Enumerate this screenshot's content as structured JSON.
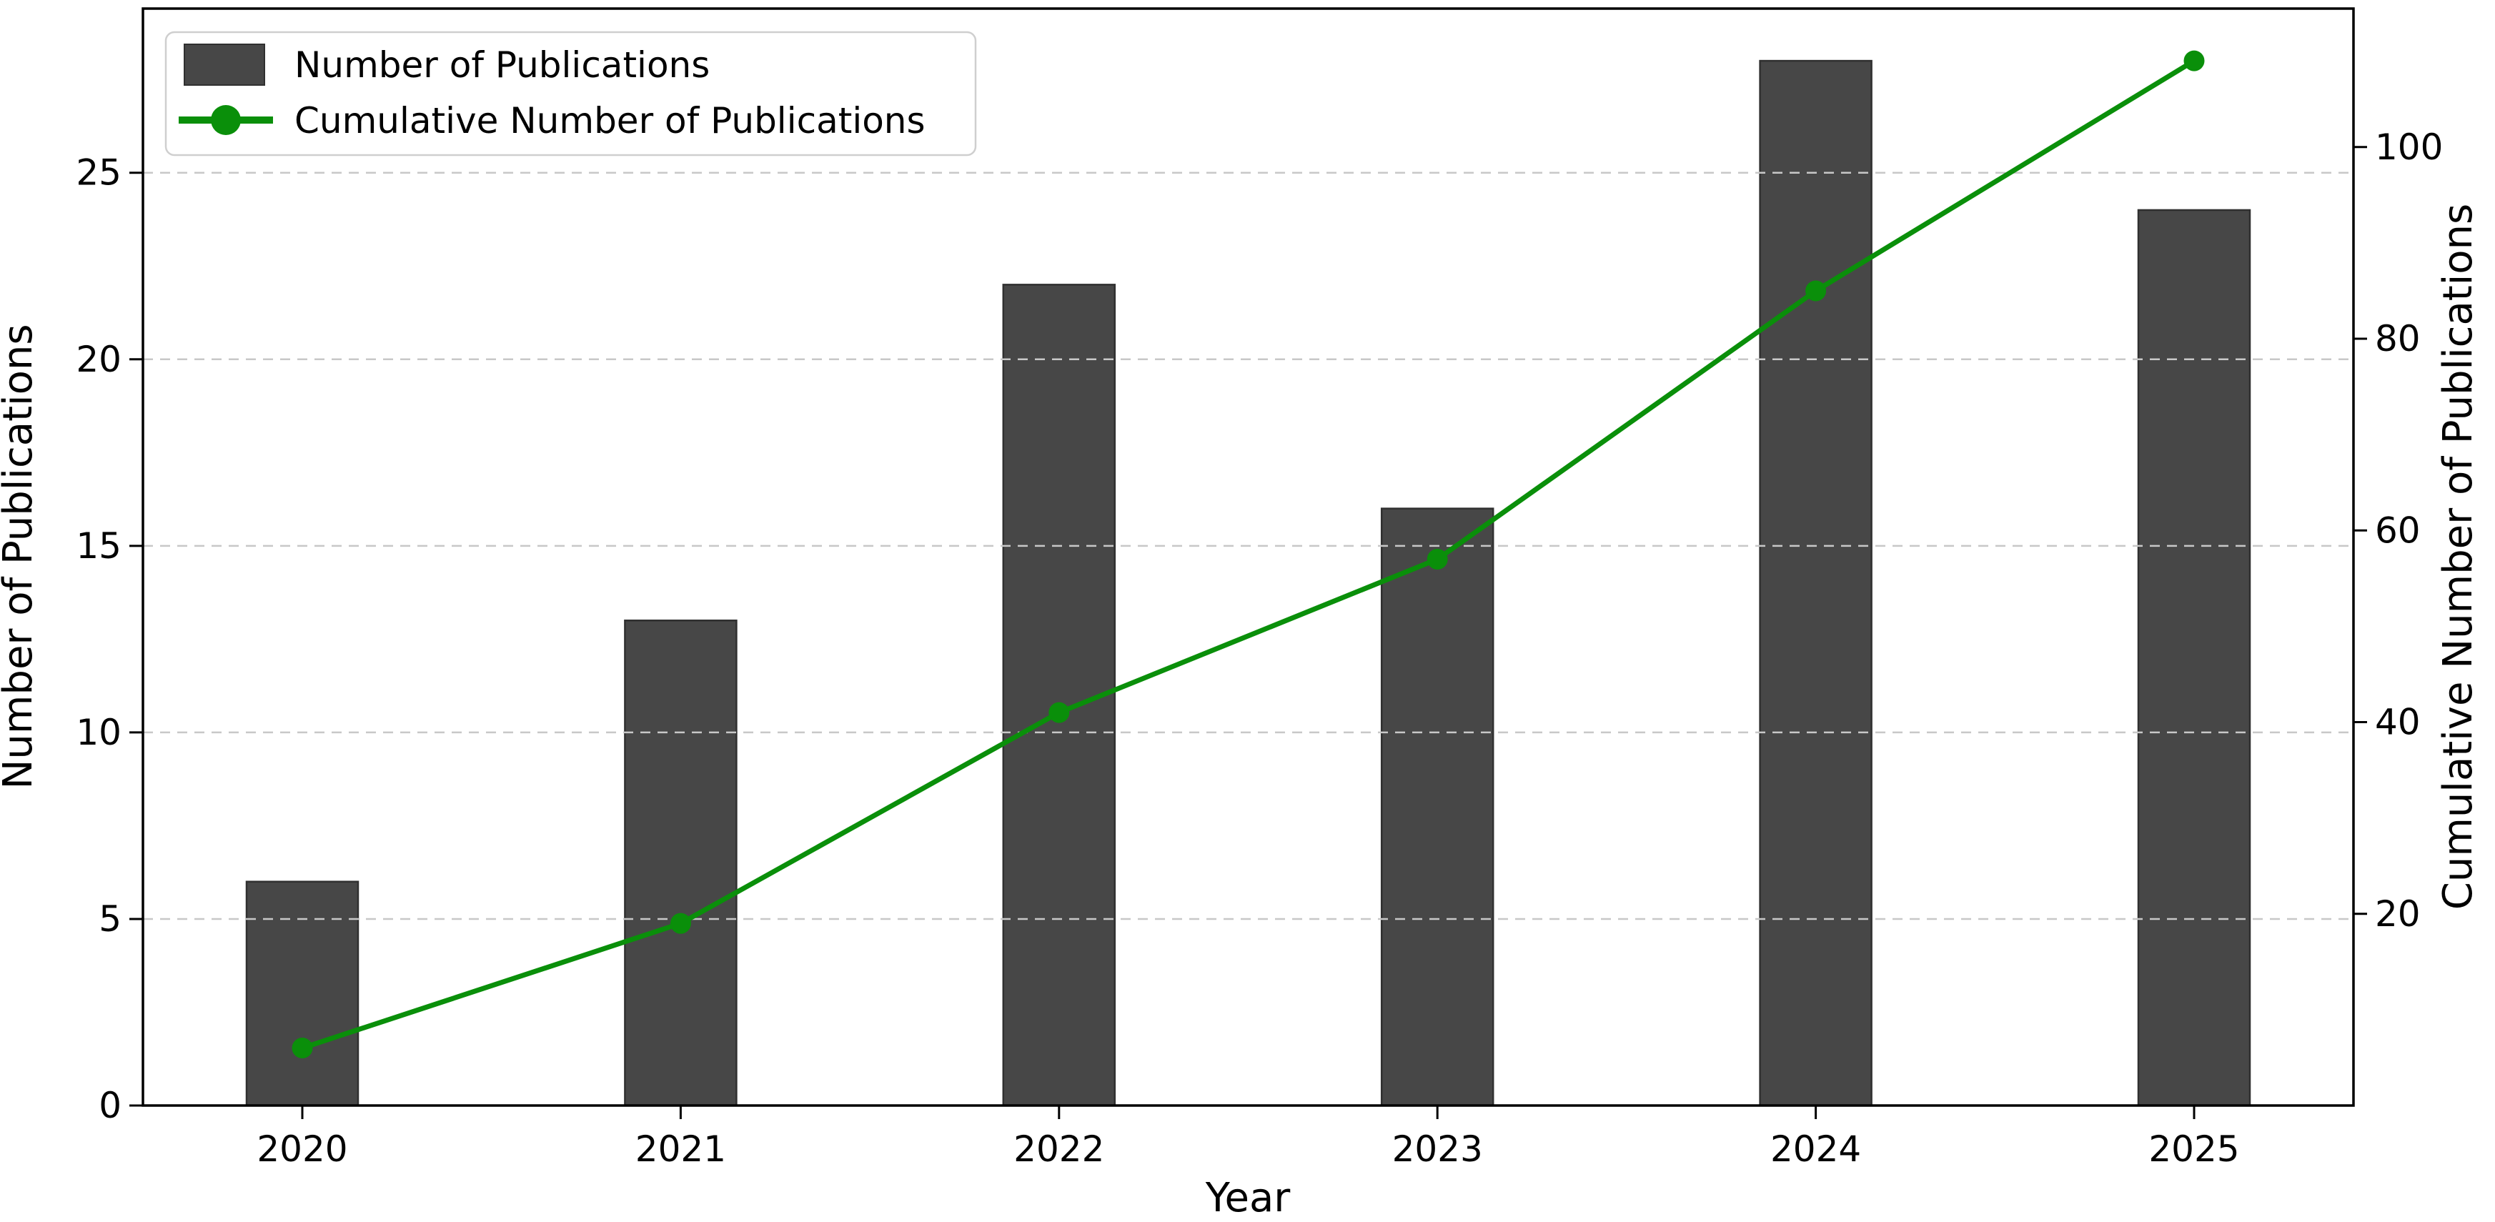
{
  "chart_data": {
    "type": "bar",
    "subtype": "combo-bar-line-dual-axis",
    "title": "",
    "xlabel": "Year",
    "categories": [
      "2020",
      "2021",
      "2022",
      "2023",
      "2024",
      "2025"
    ],
    "series": [
      {
        "name": "Number of Publications",
        "type": "bar",
        "axis": "left",
        "color": "#474747",
        "edge_color": "#303030",
        "values": [
          6,
          13,
          22,
          16,
          28,
          24
        ]
      },
      {
        "name": "Cumulative Number of Publications",
        "type": "line",
        "axis": "right",
        "color": "#0a8f0a",
        "marker": "circle",
        "values": [
          6,
          19,
          41,
          57,
          85,
          109
        ]
      }
    ],
    "left_axis": {
      "label": "Number of Publications",
      "ticks": [
        0,
        5,
        10,
        15,
        20,
        25
      ],
      "range": [
        0,
        29.4
      ]
    },
    "right_axis": {
      "label": "Cumulative Number of Publications",
      "ticks": [
        20,
        40,
        60,
        80,
        100
      ],
      "range": [
        0,
        114.45
      ]
    },
    "legend": {
      "position": "upper left",
      "entries": [
        "Number of Publications",
        "Cumulative Number of Publications"
      ]
    },
    "grid": {
      "orientation": "horizontal",
      "style": "dashed",
      "color": "#c8c8c8",
      "at_left_ticks": [
        5,
        10,
        15,
        20,
        25
      ],
      "above_bars": true
    },
    "plot_background": "#ffffff",
    "spine_color": "#000000"
  }
}
